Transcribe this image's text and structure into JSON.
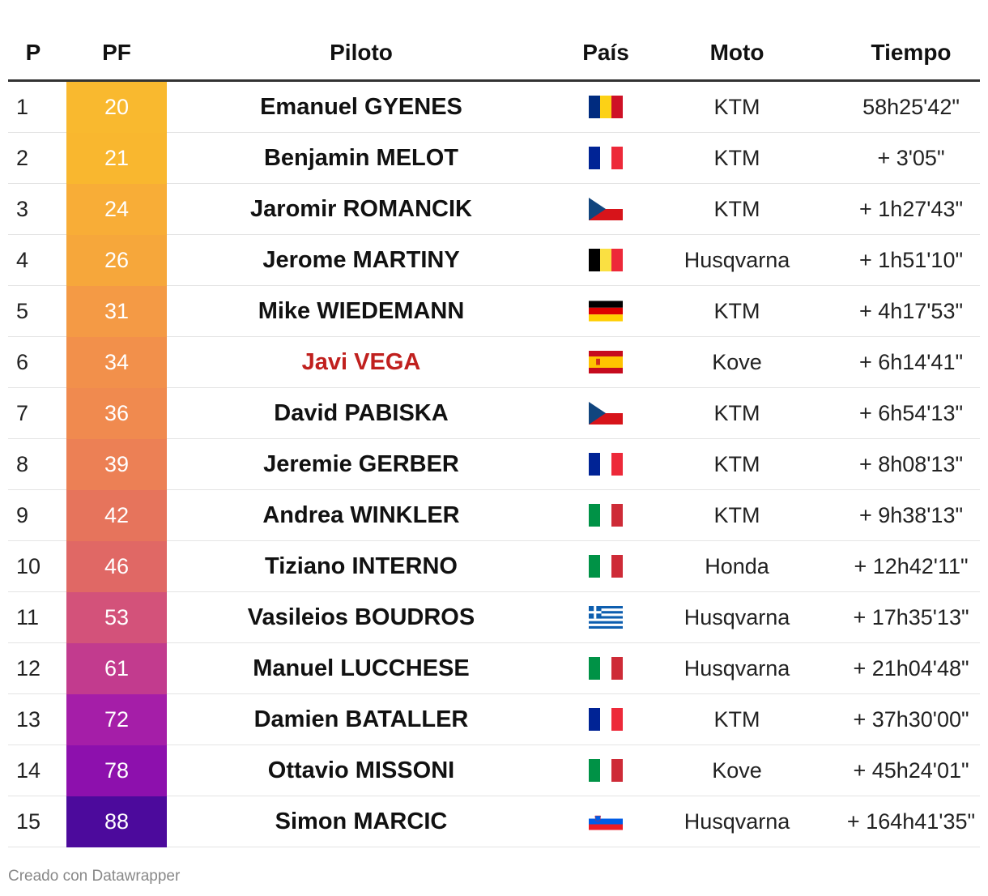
{
  "headers": {
    "p": "P",
    "pf": "PF",
    "piloto": "Piloto",
    "pais": "País",
    "moto": "Moto",
    "tiempo": "Tiempo"
  },
  "rows": [
    {
      "p": "1",
      "pf": "20",
      "piloto": "Emanuel GYENES",
      "flag": "romania-flag",
      "moto": "KTM",
      "tiempo": "58h25'42\"",
      "color": "#f9b92f"
    },
    {
      "p": "2",
      "pf": "21",
      "piloto": "Benjamin MELOT",
      "flag": "france-flag",
      "moto": "KTM",
      "tiempo": "+ 3'05\"",
      "color": "#f9b72f"
    },
    {
      "p": "3",
      "pf": "24",
      "piloto": "Jaromir ROMANCIK",
      "flag": "czech-flag",
      "moto": "KTM",
      "tiempo": "+ 1h27'43\"",
      "color": "#f8ad37"
    },
    {
      "p": "4",
      "pf": "26",
      "piloto": "Jerome MARTINY",
      "flag": "belgium-flag",
      "moto": "Husqvarna",
      "tiempo": "+ 1h51'10\"",
      "color": "#f6a73b"
    },
    {
      "p": "5",
      "pf": "31",
      "piloto": "Mike WIEDEMANN",
      "flag": "germany-flag",
      "moto": "KTM",
      "tiempo": "+ 4h17'53\"",
      "color": "#f49a45"
    },
    {
      "p": "6",
      "pf": "34",
      "piloto": "Javi VEGA",
      "flag": "spain-flag",
      "moto": "Kove",
      "tiempo": "+ 6h14'41\"",
      "color": "#f2904b",
      "highlight": true
    },
    {
      "p": "7",
      "pf": "36",
      "piloto": "David PABISKA",
      "flag": "czech-flag",
      "moto": "KTM",
      "tiempo": "+ 6h54'13\"",
      "color": "#f08a4f"
    },
    {
      "p": "8",
      "pf": "39",
      "piloto": "Jeremie GERBER",
      "flag": "france-flag",
      "moto": "KTM",
      "tiempo": "+ 8h08'13\"",
      "color": "#ec8055"
    },
    {
      "p": "9",
      "pf": "42",
      "piloto": "Andrea WINKLER",
      "flag": "italy-flag",
      "moto": "KTM",
      "tiempo": "+ 9h38'13\"",
      "color": "#e6745c"
    },
    {
      "p": "10",
      "pf": "46",
      "piloto": "Tiziano INTERNO",
      "flag": "italy-flag",
      "moto": "Honda",
      "tiempo": "+ 12h42'11\"",
      "color": "#e06865"
    },
    {
      "p": "11",
      "pf": "53",
      "piloto": "Vasileios BOUDROS",
      "flag": "greece-flag",
      "moto": "Husqvarna",
      "tiempo": "+ 17h35'13\"",
      "color": "#d3527a"
    },
    {
      "p": "12",
      "pf": "61",
      "piloto": "Manuel LUCCHESE",
      "flag": "italy-flag",
      "moto": "Husqvarna",
      "tiempo": "+ 21h04'48\"",
      "color": "#c23b8e"
    },
    {
      "p": "13",
      "pf": "72",
      "piloto": "Damien BATALLER",
      "flag": "france-flag",
      "moto": "KTM",
      "tiempo": "+ 37h30'00\"",
      "color": "#a51ea8"
    },
    {
      "p": "14",
      "pf": "78",
      "piloto": "Ottavio MISSONI",
      "flag": "italy-flag",
      "moto": "Kove",
      "tiempo": "+ 45h24'01\"",
      "color": "#8d10ad"
    },
    {
      "p": "15",
      "pf": "88",
      "piloto": "Simon MARCIC",
      "flag": "slovenia-flag",
      "moto": "Husqvarna",
      "tiempo": "+ 164h41'35\"",
      "color": "#4c0a9c"
    }
  ],
  "footer": "Creado con Datawrapper"
}
